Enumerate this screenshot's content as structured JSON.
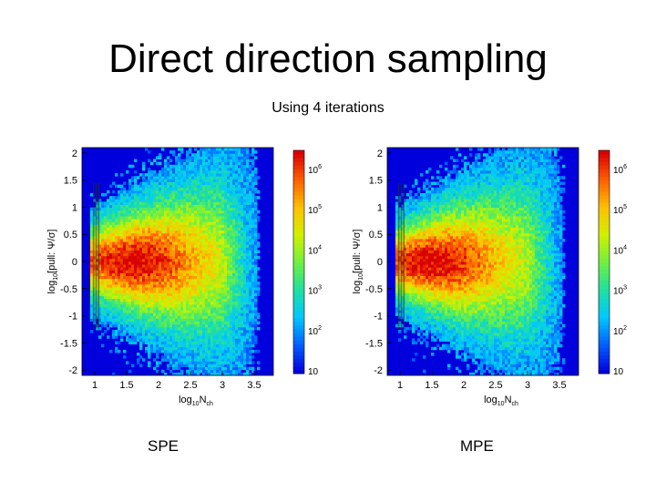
{
  "slide": {
    "title": "Direct direction sampling",
    "subtitle": "Using 4 iterations",
    "captions": [
      "SPE",
      "MPE"
    ]
  },
  "chart_data": [
    {
      "type": "heatmap",
      "panel_label": "SPE",
      "xlabel": "log10Nch",
      "ylabel": "log10[pull: Ψ/σ]",
      "xlim": [
        0.8,
        3.8
      ],
      "ylim": [
        -2.1,
        2.1
      ],
      "xticks": [
        1,
        1.5,
        2,
        2.5,
        3,
        3.5
      ],
      "yticks": [
        2,
        1.5,
        1,
        0.5,
        0,
        -0.5,
        -1,
        -1.5,
        -2
      ],
      "color_scale": "log",
      "colorbar_ticks": [
        10,
        100,
        1000,
        10000,
        100000,
        1000000
      ],
      "colorbar_labels": [
        "10",
        "10^2",
        "10^3",
        "10^4",
        "10^5",
        "10^6"
      ],
      "peak": {
        "x": 1.6,
        "y": 0.0
      },
      "x_range_of_data": [
        0.95,
        3.6
      ],
      "colors": [
        "#0000dd",
        "#0060ff",
        "#00c8ff",
        "#20e0a0",
        "#70f040",
        "#d0f000",
        "#ffc000",
        "#ff6000",
        "#d80000"
      ]
    },
    {
      "type": "heatmap",
      "panel_label": "MPE",
      "xlabel": "log10Nch",
      "ylabel": "log10[pull: Ψ/σ]",
      "xlim": [
        0.8,
        3.8
      ],
      "ylim": [
        -2.1,
        2.1
      ],
      "xticks": [
        1,
        1.5,
        2,
        2.5,
        3,
        3.5
      ],
      "yticks": [
        2,
        1.5,
        1,
        0.5,
        0,
        -0.5,
        -1,
        -1.5,
        -2
      ],
      "color_scale": "log",
      "colorbar_ticks": [
        10,
        100,
        1000,
        10000,
        100000,
        1000000
      ],
      "colorbar_labels": [
        "10",
        "10^2",
        "10^3",
        "10^4",
        "10^5",
        "10^6"
      ],
      "peak": {
        "x": 1.5,
        "y": 0.0
      },
      "x_range_of_data": [
        0.95,
        3.6
      ],
      "colors": [
        "#0000dd",
        "#0060ff",
        "#00c8ff",
        "#20e0a0",
        "#70f040",
        "#d0f000",
        "#ffc000",
        "#ff6000",
        "#d80000"
      ]
    }
  ]
}
